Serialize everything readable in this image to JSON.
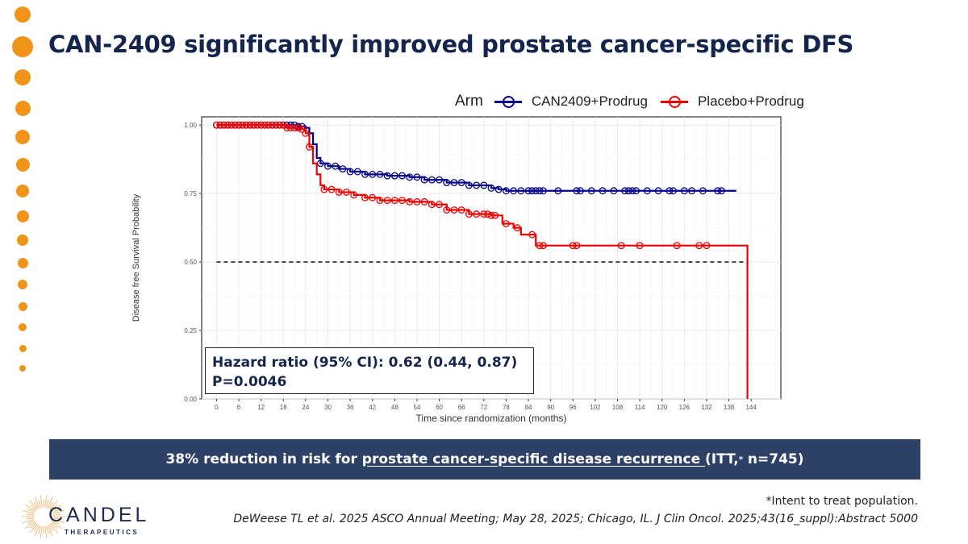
{
  "slide": {
    "title": "CAN-2409 significantly improved prostate cancer-specific DFS",
    "accent_color": "#ef9419",
    "title_color": "#13254d"
  },
  "annotation": {
    "hazard_ratio": "Hazard ratio (95% CI): 0.62 (0.44, 0.87)",
    "p_value": "P=0.0046"
  },
  "banner": {
    "prefix": "38% reduction in risk for ",
    "underlined": "prostate cancer-specific disease recurrence ",
    "suffix_before_sup": "(ITT,",
    "sup": "*",
    "suffix": " n=745)",
    "color": "#2d4167"
  },
  "footnotes": {
    "itt": "*Intent to treat population.",
    "citation": "DeWeese TL et al. 2025 ASCO Annual Meeting; May 28, 2025; Chicago, IL. J Clin Oncol. 2025;43(16_suppl):Abstract 5000"
  },
  "logo": {
    "name": "CANDEL",
    "subtitle": "THERAPEUTICS"
  },
  "chart_data": {
    "type": "line",
    "subtype": "kaplan-meier",
    "title": "",
    "xlabel": "Time since randomization (months)",
    "ylabel": "Disease free Survival Probability",
    "xlim": [
      -4,
      152
    ],
    "ylim": [
      0,
      1.03
    ],
    "xticks": [
      0,
      6,
      12,
      18,
      24,
      30,
      36,
      42,
      48,
      54,
      60,
      66,
      72,
      78,
      84,
      90,
      96,
      102,
      108,
      114,
      120,
      126,
      132,
      138,
      144
    ],
    "yticks": [
      0.0,
      0.25,
      0.5,
      0.75,
      1.0
    ],
    "ytick_labels": [
      "0.00",
      "0.25",
      "0.50",
      "0.75",
      "1.00"
    ],
    "grid": true,
    "legend": {
      "title": "Arm",
      "position": "top-right"
    },
    "reference_line": {
      "y": 0.5,
      "style": "dashed",
      "color": "#000000"
    },
    "series": [
      {
        "name": "CAN2409+Prodrug",
        "color": "#00008b",
        "steps": [
          [
            0,
            1.0
          ],
          [
            20,
            1.0
          ],
          [
            22,
            0.995
          ],
          [
            24,
            0.99
          ],
          [
            25,
            0.97
          ],
          [
            26,
            0.93
          ],
          [
            27,
            0.88
          ],
          [
            28,
            0.86
          ],
          [
            30,
            0.85
          ],
          [
            33,
            0.84
          ],
          [
            36,
            0.83
          ],
          [
            40,
            0.82
          ],
          [
            46,
            0.815
          ],
          [
            52,
            0.81
          ],
          [
            56,
            0.8
          ],
          [
            62,
            0.79
          ],
          [
            68,
            0.78
          ],
          [
            74,
            0.77
          ],
          [
            76,
            0.765
          ],
          [
            78,
            0.76
          ],
          [
            140,
            0.76
          ]
        ],
        "censored": [
          0,
          1,
          2,
          3,
          4,
          5,
          6,
          7,
          8,
          9,
          10,
          11,
          12,
          13,
          14,
          15,
          16,
          17,
          18,
          19,
          20,
          21,
          22,
          23,
          28,
          30,
          32,
          34,
          36,
          38,
          40,
          42,
          44,
          46,
          48,
          50,
          52,
          54,
          56,
          58,
          60,
          62,
          64,
          66,
          68,
          70,
          72,
          74,
          76,
          78,
          80,
          82,
          84,
          85,
          86,
          87,
          88,
          92,
          97,
          98,
          101,
          104,
          107,
          110,
          111,
          112,
          113,
          116,
          119,
          122,
          123,
          126,
          128,
          131,
          135,
          136
        ]
      },
      {
        "name": "Placebo+Prodrug",
        "color": "#ee0000",
        "steps": [
          [
            0,
            1.0
          ],
          [
            17,
            1.0
          ],
          [
            19,
            0.99
          ],
          [
            23,
            0.985
          ],
          [
            24,
            0.97
          ],
          [
            25,
            0.92
          ],
          [
            26,
            0.86
          ],
          [
            27,
            0.82
          ],
          [
            28,
            0.78
          ],
          [
            29,
            0.765
          ],
          [
            33,
            0.755
          ],
          [
            37,
            0.745
          ],
          [
            40,
            0.735
          ],
          [
            44,
            0.725
          ],
          [
            52,
            0.72
          ],
          [
            58,
            0.71
          ],
          [
            62,
            0.69
          ],
          [
            68,
            0.675
          ],
          [
            74,
            0.67
          ],
          [
            77,
            0.64
          ],
          [
            80,
            0.625
          ],
          [
            82,
            0.6
          ],
          [
            86,
            0.56
          ],
          [
            143,
            0.555
          ],
          [
            143,
            0.0
          ]
        ],
        "censored": [
          0,
          1,
          2,
          3,
          4,
          5,
          6,
          7,
          8,
          9,
          10,
          11,
          12,
          13,
          14,
          15,
          16,
          17,
          18,
          19,
          20,
          21,
          22,
          23,
          24,
          25,
          29,
          31,
          33,
          35,
          37,
          40,
          42,
          44,
          46,
          48,
          50,
          52,
          54,
          56,
          58,
          60,
          62,
          64,
          66,
          68,
          70,
          72,
          73,
          74,
          75,
          78,
          81,
          85,
          87,
          88,
          96,
          97,
          109,
          114,
          124,
          130,
          132
        ]
      }
    ]
  }
}
